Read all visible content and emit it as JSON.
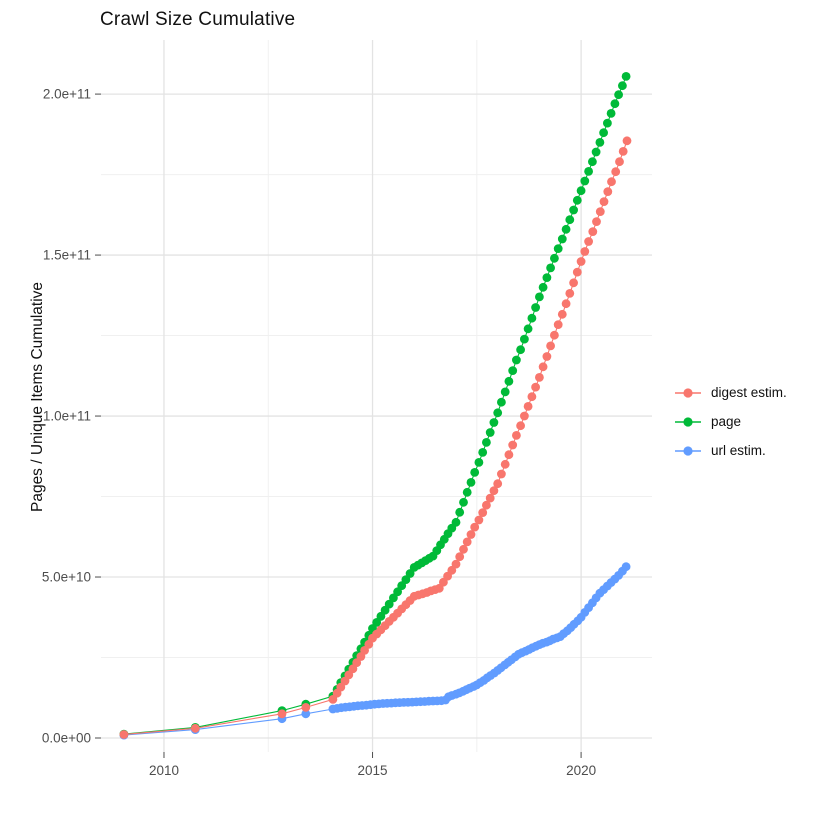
{
  "title": "Crawl Size Cumulative",
  "y_axis_title": "Pages / Unique Items Cumulative",
  "legend": {
    "position": "right",
    "items": [
      {
        "label": "digest estim.",
        "color": "#F8766D"
      },
      {
        "label": "page",
        "color": "#00BA38"
      },
      {
        "label": "url estim.",
        "color": "#619CFF"
      }
    ]
  },
  "axes": {
    "x_tick_labels": [
      "2010",
      "2015",
      "2020"
    ],
    "y_tick_labels": [
      "0.0e+00",
      "5.0e+10",
      "1.0e+11",
      "1.5e+11",
      "2.0e+11"
    ]
  },
  "chart_data": {
    "type": "scatter",
    "title": "Crawl Size Cumulative",
    "xlabel": "",
    "ylabel": "Pages / Unique Items Cumulative",
    "grid": true,
    "legend_position": "right",
    "units_note": "point values are billions of pages/items (1e9); y axis shown in scientific notation",
    "x_range": [
      2008.49,
      2021.7
    ],
    "y_range_b": [
      -4.35,
      216.8
    ],
    "x_ticks": [
      {
        "value": 2010,
        "label": "2010"
      },
      {
        "value": 2015,
        "label": "2015"
      },
      {
        "value": 2020,
        "label": "2020"
      }
    ],
    "x_minor_ticks": [
      2012.5,
      2017.5
    ],
    "y_ticks": [
      {
        "b": 0,
        "label": "0.0e+00"
      },
      {
        "b": 50,
        "label": "5.0e+10"
      },
      {
        "b": 100,
        "label": "1.0e+11"
      },
      {
        "b": 150,
        "label": "1.5e+11"
      },
      {
        "b": 200,
        "label": "2.0e+11"
      }
    ],
    "y_minor_ticks_b": [
      25,
      75,
      125,
      175
    ],
    "draw_order": [
      "url estim.",
      "page",
      "digest estim."
    ],
    "series": [
      {
        "name": "digest estim.",
        "color": "#F8766D",
        "points": [
          [
            2009.04,
            1.1
          ],
          [
            2010.75,
            3.0
          ],
          [
            2012.83,
            7.5
          ],
          [
            2013.4,
            9.5
          ],
          [
            2014.05,
            12
          ],
          [
            2014.15,
            13.9
          ],
          [
            2014.24,
            15.8
          ],
          [
            2014.34,
            17.7
          ],
          [
            2014.43,
            19.6
          ],
          [
            2014.53,
            21.5
          ],
          [
            2014.62,
            23.4
          ],
          [
            2014.72,
            25.3
          ],
          [
            2014.81,
            27.2
          ],
          [
            2014.91,
            29.1
          ],
          [
            2015.0,
            31
          ],
          [
            2015.1,
            32.3
          ],
          [
            2015.2,
            33.6
          ],
          [
            2015.3,
            34.9
          ],
          [
            2015.4,
            36.2
          ],
          [
            2015.5,
            37.5
          ],
          [
            2015.6,
            38.8
          ],
          [
            2015.7,
            40.1
          ],
          [
            2015.8,
            41.4
          ],
          [
            2015.9,
            42.7
          ],
          [
            2016.0,
            44
          ],
          [
            2016.1,
            44.4
          ],
          [
            2016.2,
            44.8
          ],
          [
            2016.3,
            45.2
          ],
          [
            2016.4,
            45.7
          ],
          [
            2016.5,
            46.1
          ],
          [
            2016.6,
            46.5
          ],
          [
            2016.7,
            48.4
          ],
          [
            2016.8,
            50.3
          ],
          [
            2016.9,
            52.1
          ],
          [
            2017.0,
            54
          ],
          [
            2017.09,
            56.3
          ],
          [
            2017.18,
            58.6
          ],
          [
            2017.27,
            60.9
          ],
          [
            2017.36,
            63.2
          ],
          [
            2017.45,
            65.5
          ],
          [
            2017.55,
            67.7
          ],
          [
            2017.64,
            70
          ],
          [
            2017.73,
            72.3
          ],
          [
            2017.82,
            74.5
          ],
          [
            2017.91,
            76.8
          ],
          [
            2018.0,
            79
          ],
          [
            2018.09,
            82
          ],
          [
            2018.18,
            85
          ],
          [
            2018.27,
            88
          ],
          [
            2018.36,
            91
          ],
          [
            2018.45,
            94
          ],
          [
            2018.55,
            97
          ],
          [
            2018.64,
            100
          ],
          [
            2018.73,
            103
          ],
          [
            2018.82,
            106
          ],
          [
            2018.91,
            109
          ],
          [
            2019.0,
            112
          ],
          [
            2019.09,
            115.3
          ],
          [
            2019.18,
            118.5
          ],
          [
            2019.27,
            121.8
          ],
          [
            2019.36,
            125.1
          ],
          [
            2019.45,
            128.4
          ],
          [
            2019.55,
            131.6
          ],
          [
            2019.64,
            134.9
          ],
          [
            2019.73,
            138.1
          ],
          [
            2019.82,
            141.4
          ],
          [
            2019.91,
            144.7
          ],
          [
            2020.0,
            148
          ],
          [
            2020.09,
            151.1
          ],
          [
            2020.18,
            154.2
          ],
          [
            2020.28,
            157.3
          ],
          [
            2020.37,
            160.4
          ],
          [
            2020.46,
            163.5
          ],
          [
            2020.55,
            166.6
          ],
          [
            2020.64,
            169.7
          ],
          [
            2020.73,
            172.8
          ],
          [
            2020.83,
            175.9
          ],
          [
            2020.92,
            179
          ],
          [
            2021.01,
            182.2
          ],
          [
            2021.1,
            185.5
          ]
        ]
      },
      {
        "name": "page",
        "color": "#00BA38",
        "points": [
          [
            2009.04,
            1.2
          ],
          [
            2010.75,
            3.3
          ],
          [
            2012.83,
            8.5
          ],
          [
            2013.4,
            10.5
          ],
          [
            2014.05,
            13
          ],
          [
            2014.15,
            15.1
          ],
          [
            2014.24,
            17.2
          ],
          [
            2014.34,
            19.3
          ],
          [
            2014.43,
            21.4
          ],
          [
            2014.53,
            23.5
          ],
          [
            2014.62,
            25.6
          ],
          [
            2014.72,
            27.7
          ],
          [
            2014.81,
            29.8
          ],
          [
            2014.91,
            31.9
          ],
          [
            2015.0,
            34
          ],
          [
            2015.1,
            35.9
          ],
          [
            2015.2,
            37.8
          ],
          [
            2015.3,
            39.7
          ],
          [
            2015.4,
            41.6
          ],
          [
            2015.5,
            43.5
          ],
          [
            2015.6,
            45.4
          ],
          [
            2015.7,
            47.3
          ],
          [
            2015.8,
            49.2
          ],
          [
            2015.9,
            51.1
          ],
          [
            2016.0,
            53
          ],
          [
            2016.09,
            53.7
          ],
          [
            2016.18,
            54.4
          ],
          [
            2016.27,
            55.1
          ],
          [
            2016.36,
            55.8
          ],
          [
            2016.45,
            56.5
          ],
          [
            2016.54,
            58.2
          ],
          [
            2016.63,
            60
          ],
          [
            2016.72,
            61.7
          ],
          [
            2016.81,
            63.5
          ],
          [
            2016.9,
            65.2
          ],
          [
            2017.0,
            67
          ],
          [
            2017.09,
            70.1
          ],
          [
            2017.18,
            73.2
          ],
          [
            2017.27,
            76.3
          ],
          [
            2017.36,
            79.4
          ],
          [
            2017.45,
            82.5
          ],
          [
            2017.55,
            85.6
          ],
          [
            2017.64,
            88.7
          ],
          [
            2017.73,
            91.8
          ],
          [
            2017.82,
            94.9
          ],
          [
            2017.91,
            98
          ],
          [
            2018.0,
            101
          ],
          [
            2018.09,
            104.3
          ],
          [
            2018.18,
            107.5
          ],
          [
            2018.27,
            110.8
          ],
          [
            2018.36,
            114.1
          ],
          [
            2018.45,
            117.4
          ],
          [
            2018.55,
            120.6
          ],
          [
            2018.64,
            123.9
          ],
          [
            2018.73,
            127.1
          ],
          [
            2018.82,
            130.4
          ],
          [
            2018.91,
            133.7
          ],
          [
            2019.0,
            137
          ],
          [
            2019.09,
            140
          ],
          [
            2019.18,
            143
          ],
          [
            2019.27,
            146
          ],
          [
            2019.36,
            149
          ],
          [
            2019.45,
            152
          ],
          [
            2019.55,
            155
          ],
          [
            2019.64,
            158
          ],
          [
            2019.73,
            161
          ],
          [
            2019.82,
            164
          ],
          [
            2019.91,
            167
          ],
          [
            2020.0,
            170
          ],
          [
            2020.09,
            173
          ],
          [
            2020.18,
            176
          ],
          [
            2020.27,
            179
          ],
          [
            2020.36,
            182
          ],
          [
            2020.45,
            185
          ],
          [
            2020.54,
            188
          ],
          [
            2020.63,
            191
          ],
          [
            2020.72,
            194
          ],
          [
            2020.81,
            197
          ],
          [
            2020.9,
            199.8
          ],
          [
            2020.99,
            202.6
          ],
          [
            2021.08,
            205.5
          ]
        ]
      },
      {
        "name": "url estim.",
        "color": "#619CFF",
        "points": [
          [
            2009.04,
            0.9
          ],
          [
            2010.75,
            2.6
          ],
          [
            2012.83,
            6.0
          ],
          [
            2013.4,
            7.5
          ],
          [
            2014.05,
            9
          ],
          [
            2014.15,
            9.2
          ],
          [
            2014.25,
            9.4
          ],
          [
            2014.35,
            9.55
          ],
          [
            2014.45,
            9.7
          ],
          [
            2014.55,
            9.85
          ],
          [
            2014.65,
            10
          ],
          [
            2014.75,
            10.1
          ],
          [
            2014.85,
            10.2
          ],
          [
            2014.95,
            10.35
          ],
          [
            2015.05,
            10.5
          ],
          [
            2015.15,
            10.6
          ],
          [
            2015.25,
            10.7
          ],
          [
            2015.35,
            10.78
          ],
          [
            2015.45,
            10.85
          ],
          [
            2015.55,
            10.92
          ],
          [
            2015.65,
            11.0
          ],
          [
            2015.75,
            11.05
          ],
          [
            2015.85,
            11.1
          ],
          [
            2015.95,
            11.15
          ],
          [
            2016.05,
            11.22
          ],
          [
            2016.15,
            11.28
          ],
          [
            2016.25,
            11.35
          ],
          [
            2016.35,
            11.42
          ],
          [
            2016.45,
            11.48
          ],
          [
            2016.55,
            11.52
          ],
          [
            2016.65,
            11.58
          ],
          [
            2016.75,
            11.8
          ],
          [
            2016.82,
            12.8
          ],
          [
            2016.9,
            13.2
          ],
          [
            2017.0,
            13.6
          ],
          [
            2017.08,
            14
          ],
          [
            2017.17,
            14.5
          ],
          [
            2017.25,
            15
          ],
          [
            2017.33,
            15.5
          ],
          [
            2017.42,
            16
          ],
          [
            2017.5,
            16.5
          ],
          [
            2017.58,
            17.2
          ],
          [
            2017.67,
            17.9
          ],
          [
            2017.75,
            18.7
          ],
          [
            2017.83,
            19.4
          ],
          [
            2017.92,
            20.2
          ],
          [
            2018.0,
            21
          ],
          [
            2018.08,
            21.8
          ],
          [
            2018.17,
            22.7
          ],
          [
            2018.25,
            23.5
          ],
          [
            2018.33,
            24.3
          ],
          [
            2018.42,
            25.2
          ],
          [
            2018.5,
            26
          ],
          [
            2018.58,
            26.5
          ],
          [
            2018.67,
            27
          ],
          [
            2018.75,
            27.5
          ],
          [
            2018.83,
            28
          ],
          [
            2018.92,
            28.5
          ],
          [
            2019.0,
            29
          ],
          [
            2019.08,
            29.4
          ],
          [
            2019.17,
            29.8
          ],
          [
            2019.25,
            30.2
          ],
          [
            2019.33,
            30.7
          ],
          [
            2019.42,
            31.1
          ],
          [
            2019.5,
            31.5
          ],
          [
            2019.58,
            32.4
          ],
          [
            2019.67,
            33.3
          ],
          [
            2019.75,
            34.3
          ],
          [
            2019.83,
            35.3
          ],
          [
            2019.92,
            36.4
          ],
          [
            2020.0,
            37.5
          ],
          [
            2020.09,
            39
          ],
          [
            2020.18,
            40.5
          ],
          [
            2020.27,
            42
          ],
          [
            2020.36,
            43.5
          ],
          [
            2020.45,
            45
          ],
          [
            2020.54,
            46.1
          ],
          [
            2020.63,
            47.2
          ],
          [
            2020.72,
            48.3
          ],
          [
            2020.81,
            49.4
          ],
          [
            2020.9,
            50.5
          ],
          [
            2020.99,
            51.8
          ],
          [
            2021.08,
            53.2
          ]
        ]
      }
    ]
  },
  "style": {
    "grid_major_color": "#e3e3e3",
    "grid_minor_color": "#f0f0f0",
    "tick_color": "#4d4d4d",
    "tick_label_color": "#4d4d4d",
    "text_color": "#111111",
    "background": "#ffffff"
  }
}
